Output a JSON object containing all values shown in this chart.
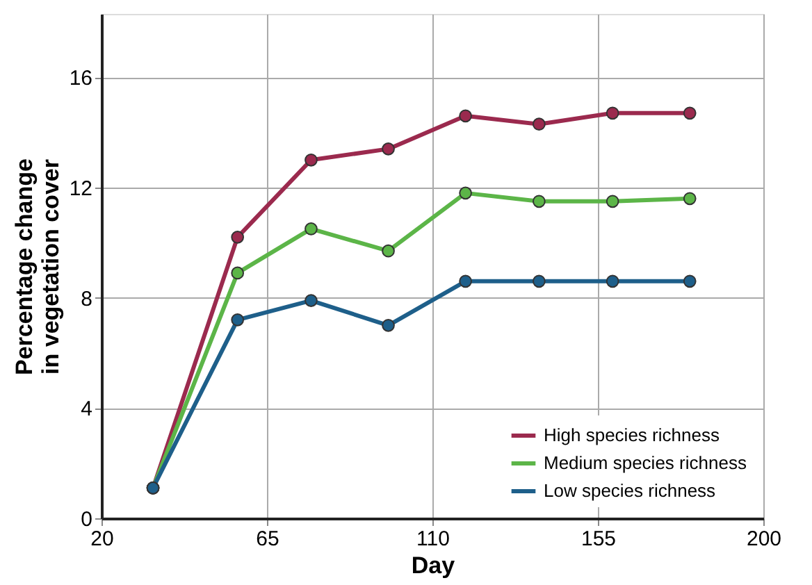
{
  "chart_data": {
    "type": "line",
    "xlabel": "Day",
    "ylabel": "Percentage change\nin vegetation cover",
    "x": [
      34,
      57,
      77,
      98,
      119,
      139,
      159,
      180
    ],
    "series": [
      {
        "name": "High species richness",
        "color": "#9b2a4e",
        "values": [
          1.1,
          10.2,
          13.0,
          13.4,
          14.6,
          14.3,
          14.7,
          14.7
        ]
      },
      {
        "name": "Medium species richness",
        "color": "#5cb548",
        "values": [
          1.1,
          8.9,
          10.5,
          9.7,
          11.8,
          11.5,
          11.5,
          11.6
        ]
      },
      {
        "name": "Low species richness",
        "color": "#1e5f8a",
        "values": [
          1.1,
          7.2,
          7.9,
          7.0,
          8.6,
          8.6,
          8.6,
          8.6
        ]
      }
    ],
    "xlim": [
      20,
      200
    ],
    "xticks": [
      20,
      65,
      110,
      155,
      200
    ],
    "ylim": [
      0,
      18.3
    ],
    "yticks": [
      0,
      4,
      8,
      12,
      16
    ],
    "grid": true,
    "legend": "bottom right",
    "marker": "circle",
    "line_style": "solid"
  }
}
